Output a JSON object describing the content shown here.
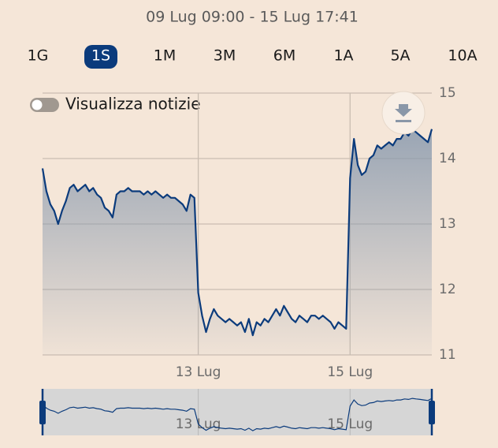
{
  "header": {
    "range": "09 Lug 09:00 - 15 Lug 17:41"
  },
  "periods": [
    {
      "label": "1G",
      "selected": false
    },
    {
      "label": "1S",
      "selected": true
    },
    {
      "label": "1M",
      "selected": false
    },
    {
      "label": "3M",
      "selected": false
    },
    {
      "label": "6M",
      "selected": false
    },
    {
      "label": "1A",
      "selected": false
    },
    {
      "label": "5A",
      "selected": false
    },
    {
      "label": "10A",
      "selected": false
    }
  ],
  "toggle": {
    "label": "Visualizza notizie",
    "on": false
  },
  "chart_data": {
    "type": "line",
    "color": "#0b3b7c",
    "grid": true,
    "ylim": [
      11,
      15
    ],
    "yticks": [
      11,
      12,
      13,
      14,
      15
    ],
    "categories": [
      null,
      null,
      null,
      null,
      null,
      null,
      null,
      null,
      null,
      null,
      null,
      null,
      null,
      null,
      null,
      null,
      null,
      null,
      null,
      null,
      null,
      null,
      null,
      null,
      null,
      null,
      null,
      null,
      null,
      null,
      null,
      null,
      null,
      null,
      null,
      null,
      null,
      null,
      null,
      null,
      "13 Lug",
      null,
      null,
      null,
      null,
      null,
      null,
      null,
      null,
      null,
      null,
      null,
      null,
      null,
      null,
      null,
      null,
      null,
      null,
      null,
      null,
      null,
      null,
      null,
      null,
      null,
      null,
      null,
      null,
      null,
      null,
      null,
      null,
      null,
      null,
      null,
      null,
      null,
      null,
      "15 Lug",
      null,
      null,
      null,
      null,
      null,
      null,
      null,
      null,
      null,
      null,
      null,
      null,
      null,
      null,
      null,
      null,
      null,
      null,
      null,
      null,
      null
    ],
    "values": [
      13.85,
      13.5,
      13.3,
      13.2,
      13.0,
      13.2,
      13.35,
      13.55,
      13.6,
      13.5,
      13.55,
      13.6,
      13.5,
      13.55,
      13.45,
      13.4,
      13.25,
      13.2,
      13.1,
      13.45,
      13.5,
      13.5,
      13.55,
      13.5,
      13.5,
      13.5,
      13.45,
      13.5,
      13.45,
      13.5,
      13.45,
      13.4,
      13.45,
      13.4,
      13.4,
      13.35,
      13.3,
      13.2,
      13.45,
      13.4,
      11.95,
      11.6,
      11.35,
      11.55,
      11.7,
      11.6,
      11.55,
      11.5,
      11.55,
      11.5,
      11.45,
      11.5,
      11.35,
      11.55,
      11.3,
      11.5,
      11.45,
      11.55,
      11.5,
      11.6,
      11.7,
      11.6,
      11.75,
      11.65,
      11.55,
      11.5,
      11.6,
      11.55,
      11.5,
      11.6,
      11.6,
      11.55,
      11.6,
      11.55,
      11.5,
      11.4,
      11.5,
      11.45,
      11.4,
      13.7,
      14.3,
      13.9,
      13.75,
      13.8,
      14.0,
      14.05,
      14.2,
      14.15,
      14.2,
      14.25,
      14.2,
      14.3,
      14.3,
      14.4,
      14.35,
      14.45,
      14.4,
      14.35,
      14.3,
      14.25,
      14.45
    ]
  }
}
